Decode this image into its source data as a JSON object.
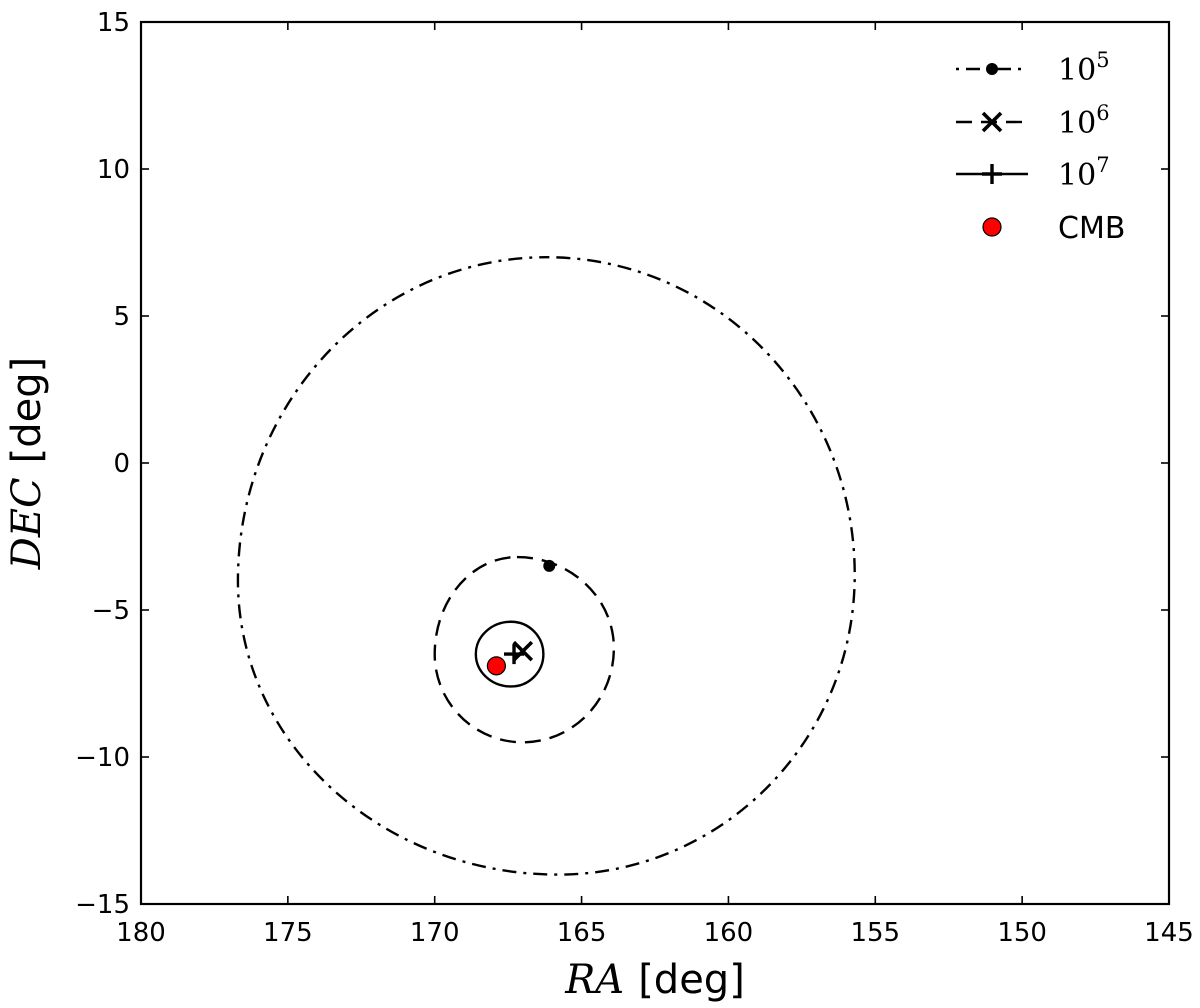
{
  "chart_data": {
    "type": "scatter",
    "title": "",
    "xlabel": {
      "math": "RA",
      "unit": "[deg]"
    },
    "ylabel": {
      "math": "DEC",
      "unit": "[deg]"
    },
    "xlim": [
      180,
      145
    ],
    "ylim": [
      -15,
      15
    ],
    "x_ticks": [
      180,
      175,
      170,
      165,
      160,
      155,
      150,
      145
    ],
    "y_ticks": [
      15,
      10,
      5,
      0,
      -5,
      -10,
      -15
    ],
    "x_tick_labels": [
      "180",
      "175",
      "170",
      "165",
      "160",
      "155",
      "150",
      "145"
    ],
    "y_tick_labels": [
      "15",
      "10",
      "5",
      "0",
      "−5",
      "−10",
      "−15"
    ],
    "grid": false,
    "legend_position": "top-right",
    "series": [
      {
        "name_base": "10",
        "name_exp": "5",
        "marker": "dot",
        "line_style": "dashdot",
        "center": [
          166.1,
          -3.5
        ],
        "contour": {
          "ra_min": 176.7,
          "ra_max": 155.7,
          "dec_min": -14.0,
          "dec_max": 7.0,
          "apex_ra": 166.2,
          "bottom_ra": 165.8,
          "right_dec": -3.8,
          "left_dec": -4.0
        }
      },
      {
        "name_base": "10",
        "name_exp": "6",
        "marker": "x",
        "line_style": "dashed",
        "center": [
          167.0,
          -6.4
        ],
        "contour": {
          "ra_min": 170.0,
          "ra_max": 163.9,
          "dec_min": -9.5,
          "dec_max": -3.2,
          "apex_ra": 167.2,
          "bottom_ra": 167.0,
          "right_dec": -6.3,
          "left_dec": -6.5
        }
      },
      {
        "name_base": "10",
        "name_exp": "7",
        "marker": "plus",
        "line_style": "solid",
        "center": [
          167.3,
          -6.5
        ],
        "contour": {
          "ra_min": 168.6,
          "ra_max": 166.3,
          "dec_min": -7.6,
          "dec_max": -5.4,
          "apex_ra": 167.4,
          "bottom_ra": 167.4,
          "right_dec": -6.5,
          "left_dec": -6.5
        }
      }
    ],
    "cmb": {
      "name": "CMB",
      "ra": 167.9,
      "dec": -6.9,
      "color": "#ff0000"
    }
  }
}
